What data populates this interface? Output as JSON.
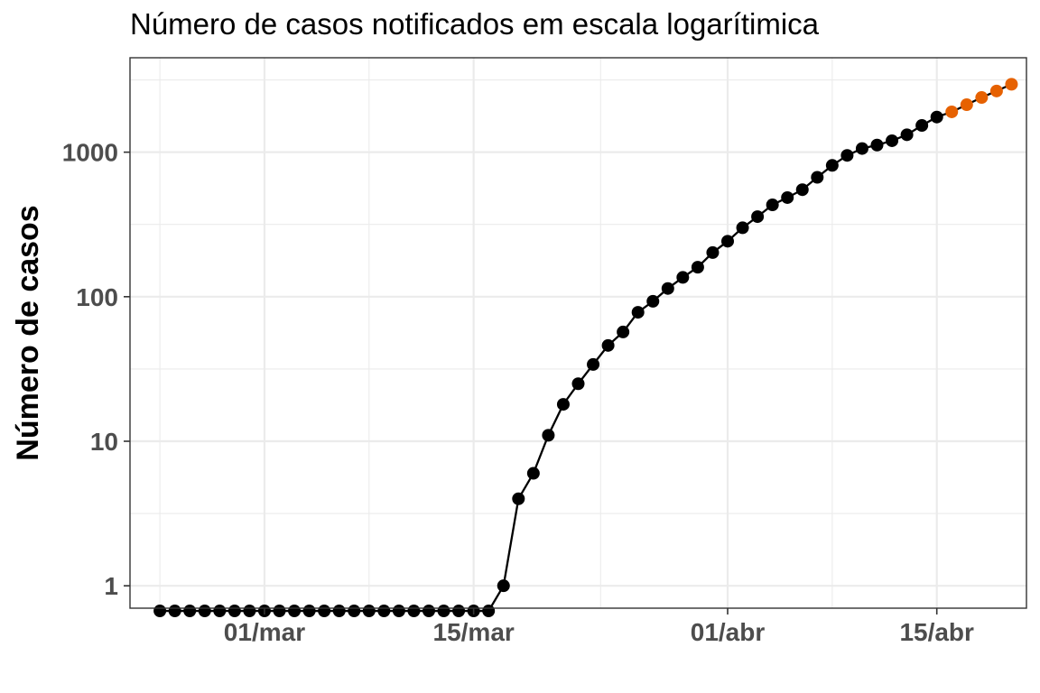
{
  "chart_data": {
    "type": "line",
    "title": "Número de casos notificados em escala logarítimica",
    "xlabel": "",
    "ylabel": "Número de casos",
    "y_scale": "log10",
    "ylim": [
      0.7,
      4500
    ],
    "xlim": [
      "2020-02-21",
      "2020-04-21"
    ],
    "grid": true,
    "legend": "none",
    "x_ticks": [
      {
        "date": "2020-03-01",
        "label": "01/mar"
      },
      {
        "date": "2020-03-15",
        "label": "15/mar"
      },
      {
        "date": "2020-04-01",
        "label": "01/abr"
      },
      {
        "date": "2020-04-15",
        "label": "15/abr"
      }
    ],
    "y_ticks": [
      {
        "value": 1,
        "label": "1"
      },
      {
        "value": 10,
        "label": "10"
      },
      {
        "value": 100,
        "label": "100"
      },
      {
        "value": 1000,
        "label": "1000"
      }
    ],
    "colors": {
      "observed": "#000000",
      "projected": "#e66101",
      "grid": "#ebebeb",
      "panel_border": "#333333"
    },
    "series": [
      {
        "key": "observed",
        "color": "#000000",
        "points": [
          {
            "x": "2020-02-23",
            "y": 0.67
          },
          {
            "x": "2020-02-24",
            "y": 0.67
          },
          {
            "x": "2020-02-25",
            "y": 0.67
          },
          {
            "x": "2020-02-26",
            "y": 0.67
          },
          {
            "x": "2020-02-27",
            "y": 0.67
          },
          {
            "x": "2020-02-28",
            "y": 0.67
          },
          {
            "x": "2020-02-29",
            "y": 0.67
          },
          {
            "x": "2020-03-01",
            "y": 0.67
          },
          {
            "x": "2020-03-02",
            "y": 0.67
          },
          {
            "x": "2020-03-03",
            "y": 0.67
          },
          {
            "x": "2020-03-04",
            "y": 0.67
          },
          {
            "x": "2020-03-05",
            "y": 0.67
          },
          {
            "x": "2020-03-06",
            "y": 0.67
          },
          {
            "x": "2020-03-07",
            "y": 0.67
          },
          {
            "x": "2020-03-08",
            "y": 0.67
          },
          {
            "x": "2020-03-09",
            "y": 0.67
          },
          {
            "x": "2020-03-10",
            "y": 0.67
          },
          {
            "x": "2020-03-11",
            "y": 0.67
          },
          {
            "x": "2020-03-12",
            "y": 0.67
          },
          {
            "x": "2020-03-13",
            "y": 0.67
          },
          {
            "x": "2020-03-14",
            "y": 0.67
          },
          {
            "x": "2020-03-15",
            "y": 0.67
          },
          {
            "x": "2020-03-16",
            "y": 0.67
          },
          {
            "x": "2020-03-17",
            "y": 1
          },
          {
            "x": "2020-03-18",
            "y": 4
          },
          {
            "x": "2020-03-19",
            "y": 6
          },
          {
            "x": "2020-03-20",
            "y": 11
          },
          {
            "x": "2020-03-21",
            "y": 18
          },
          {
            "x": "2020-03-22",
            "y": 25
          },
          {
            "x": "2020-03-23",
            "y": 34
          },
          {
            "x": "2020-03-24",
            "y": 46
          },
          {
            "x": "2020-03-25",
            "y": 57
          },
          {
            "x": "2020-03-26",
            "y": 78
          },
          {
            "x": "2020-03-27",
            "y": 93
          },
          {
            "x": "2020-03-28",
            "y": 114
          },
          {
            "x": "2020-03-29",
            "y": 136
          },
          {
            "x": "2020-03-30",
            "y": 160
          },
          {
            "x": "2020-03-31",
            "y": 202
          },
          {
            "x": "2020-04-01",
            "y": 242
          },
          {
            "x": "2020-04-02",
            "y": 300
          },
          {
            "x": "2020-04-03",
            "y": 358
          },
          {
            "x": "2020-04-04",
            "y": 432
          },
          {
            "x": "2020-04-05",
            "y": 485
          },
          {
            "x": "2020-04-06",
            "y": 550
          },
          {
            "x": "2020-04-07",
            "y": 670
          },
          {
            "x": "2020-04-08",
            "y": 810
          },
          {
            "x": "2020-04-09",
            "y": 950
          },
          {
            "x": "2020-04-10",
            "y": 1060
          },
          {
            "x": "2020-04-11",
            "y": 1120
          },
          {
            "x": "2020-04-12",
            "y": 1200
          },
          {
            "x": "2020-04-13",
            "y": 1320
          },
          {
            "x": "2020-04-14",
            "y": 1530
          },
          {
            "x": "2020-04-15",
            "y": 1750
          }
        ]
      },
      {
        "key": "projected",
        "color": "#e66101",
        "points": [
          {
            "x": "2020-04-16",
            "y": 1900
          },
          {
            "x": "2020-04-17",
            "y": 2130
          },
          {
            "x": "2020-04-18",
            "y": 2390
          },
          {
            "x": "2020-04-19",
            "y": 2650
          },
          {
            "x": "2020-04-20",
            "y": 2950
          }
        ]
      }
    ]
  }
}
